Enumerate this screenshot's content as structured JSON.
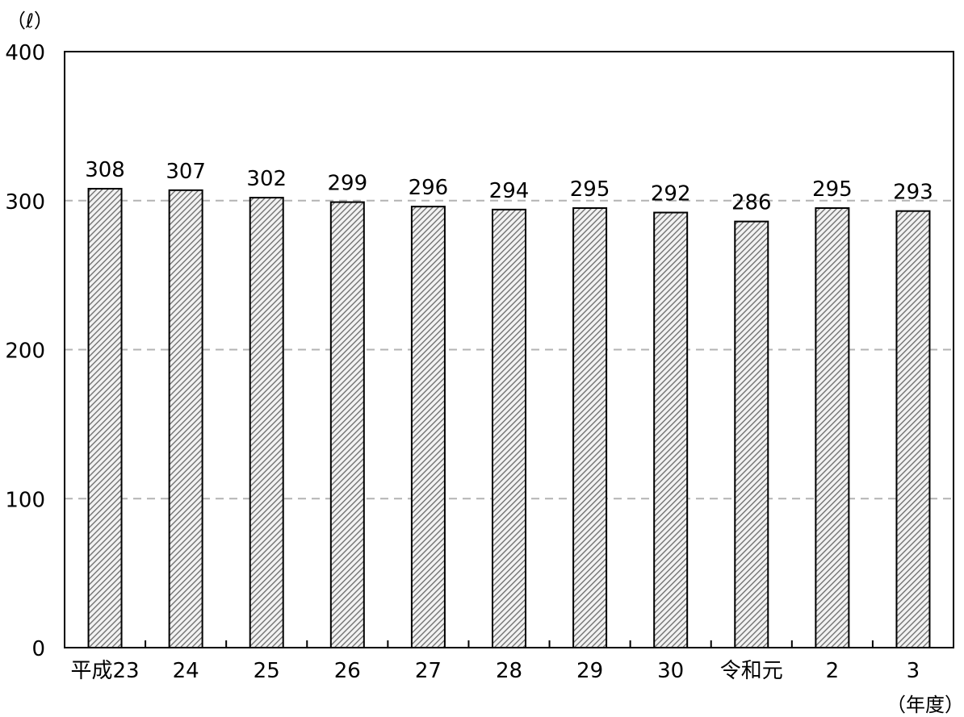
{
  "chart_data": {
    "type": "bar",
    "ylabel": "（ℓ）",
    "xlabel": "（年度）",
    "categories": [
      "平成23",
      "24",
      "25",
      "26",
      "27",
      "28",
      "29",
      "30",
      "令和元",
      "2",
      "3"
    ],
    "values": [
      308,
      307,
      302,
      299,
      296,
      294,
      295,
      292,
      286,
      295,
      293
    ],
    "data_labels": [
      "308",
      "307",
      "302",
      "299",
      "296",
      "294",
      "295",
      "292",
      "286",
      "295",
      "293"
    ],
    "ylim": [
      0,
      400
    ],
    "yticks": [
      0,
      100,
      200,
      300,
      400
    ],
    "ytick_labels": [
      "0",
      "100",
      "200",
      "300",
      "400"
    ],
    "grid": true,
    "bar_fill": "hatched",
    "bar_color": "#888888",
    "grid_color": "#b3b3b3"
  }
}
